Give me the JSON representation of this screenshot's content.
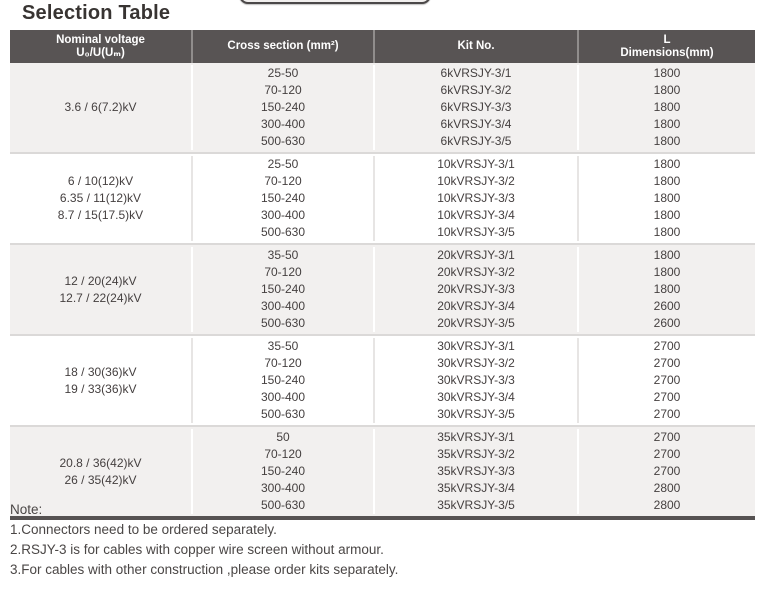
{
  "page": {
    "title": "Selection Table",
    "note": {
      "heading": "Note:",
      "items": [
        "1.Connectors need to be ordered separately.",
        "2.RSJY-3 is for cables with copper wire screen without armour.",
        "3.For cables with other construction ,please order kits separately."
      ]
    }
  },
  "colors": {
    "header_bg": "#585454",
    "group_shaded_bg": "#f2f0ef",
    "body_text": "#454040",
    "title_text": "#383432",
    "note_text": "#4a4645",
    "bottom_bar": "#565252",
    "group_separator": "#dbd9d8"
  },
  "table": {
    "columns": [
      {
        "id": "voltage",
        "label_lines": [
          "Nominal voltage",
          "U₀/U(Uₘ)"
        ]
      },
      {
        "id": "cross-section",
        "label_lines": [
          "Cross section (mm²)"
        ]
      },
      {
        "id": "kit-no",
        "label_lines": [
          "Kit No."
        ]
      },
      {
        "id": "dimensions",
        "label_lines": [
          "L",
          "Dimensions(mm)"
        ]
      }
    ],
    "groups": [
      {
        "voltages": [
          "3.6 / 6(7.2)kV"
        ],
        "rows": [
          {
            "cross_section": "25-50",
            "kit_no": "6kVRSJY-3/1",
            "dimension": "1800"
          },
          {
            "cross_section": "70-120",
            "kit_no": "6kVRSJY-3/2",
            "dimension": "1800"
          },
          {
            "cross_section": "150-240",
            "kit_no": "6kVRSJY-3/3",
            "dimension": "1800"
          },
          {
            "cross_section": "300-400",
            "kit_no": "6kVRSJY-3/4",
            "dimension": "1800"
          },
          {
            "cross_section": "500-630",
            "kit_no": "6kVRSJY-3/5",
            "dimension": "1800"
          }
        ]
      },
      {
        "voltages": [
          "6 / 10(12)kV",
          "6.35 / 11(12)kV",
          "8.7 / 15(17.5)kV"
        ],
        "rows": [
          {
            "cross_section": "25-50",
            "kit_no": "10kVRSJY-3/1",
            "dimension": "1800"
          },
          {
            "cross_section": "70-120",
            "kit_no": "10kVRSJY-3/2",
            "dimension": "1800"
          },
          {
            "cross_section": "150-240",
            "kit_no": "10kVRSJY-3/3",
            "dimension": "1800"
          },
          {
            "cross_section": "300-400",
            "kit_no": "10kVRSJY-3/4",
            "dimension": "1800"
          },
          {
            "cross_section": "500-630",
            "kit_no": "10kVRSJY-3/5",
            "dimension": "1800"
          }
        ]
      },
      {
        "voltages": [
          "12 / 20(24)kV",
          "12.7 / 22(24)kV"
        ],
        "rows": [
          {
            "cross_section": "35-50",
            "kit_no": "20kVRSJY-3/1",
            "dimension": "1800"
          },
          {
            "cross_section": "70-120",
            "kit_no": "20kVRSJY-3/2",
            "dimension": "1800"
          },
          {
            "cross_section": "150-240",
            "kit_no": "20kVRSJY-3/3",
            "dimension": "1800"
          },
          {
            "cross_section": "300-400",
            "kit_no": "20kVRSJY-3/4",
            "dimension": "2600"
          },
          {
            "cross_section": "500-630",
            "kit_no": "20kVRSJY-3/5",
            "dimension": "2600"
          }
        ]
      },
      {
        "voltages": [
          "18 / 30(36)kV",
          "19 / 33(36)kV"
        ],
        "rows": [
          {
            "cross_section": "35-50",
            "kit_no": "30kVRSJY-3/1",
            "dimension": "2700"
          },
          {
            "cross_section": "70-120",
            "kit_no": "30kVRSJY-3/2",
            "dimension": "2700"
          },
          {
            "cross_section": "150-240",
            "kit_no": "30kVRSJY-3/3",
            "dimension": "2700"
          },
          {
            "cross_section": "300-400",
            "kit_no": "30kVRSJY-3/4",
            "dimension": "2700"
          },
          {
            "cross_section": "500-630",
            "kit_no": "30kVRSJY-3/5",
            "dimension": "2700"
          }
        ]
      },
      {
        "voltages": [
          "20.8 / 36(42)kV",
          "26 / 35(42)kV"
        ],
        "rows": [
          {
            "cross_section": "50",
            "kit_no": "35kVRSJY-3/1",
            "dimension": "2700"
          },
          {
            "cross_section": "70-120",
            "kit_no": "35kVRSJY-3/2",
            "dimension": "2700"
          },
          {
            "cross_section": "150-240",
            "kit_no": "35kVRSJY-3/3",
            "dimension": "2700"
          },
          {
            "cross_section": "300-400",
            "kit_no": "35kVRSJY-3/4",
            "dimension": "2800"
          },
          {
            "cross_section": "500-630",
            "kit_no": "35kVRSJY-3/5",
            "dimension": "2800"
          }
        ]
      }
    ]
  }
}
